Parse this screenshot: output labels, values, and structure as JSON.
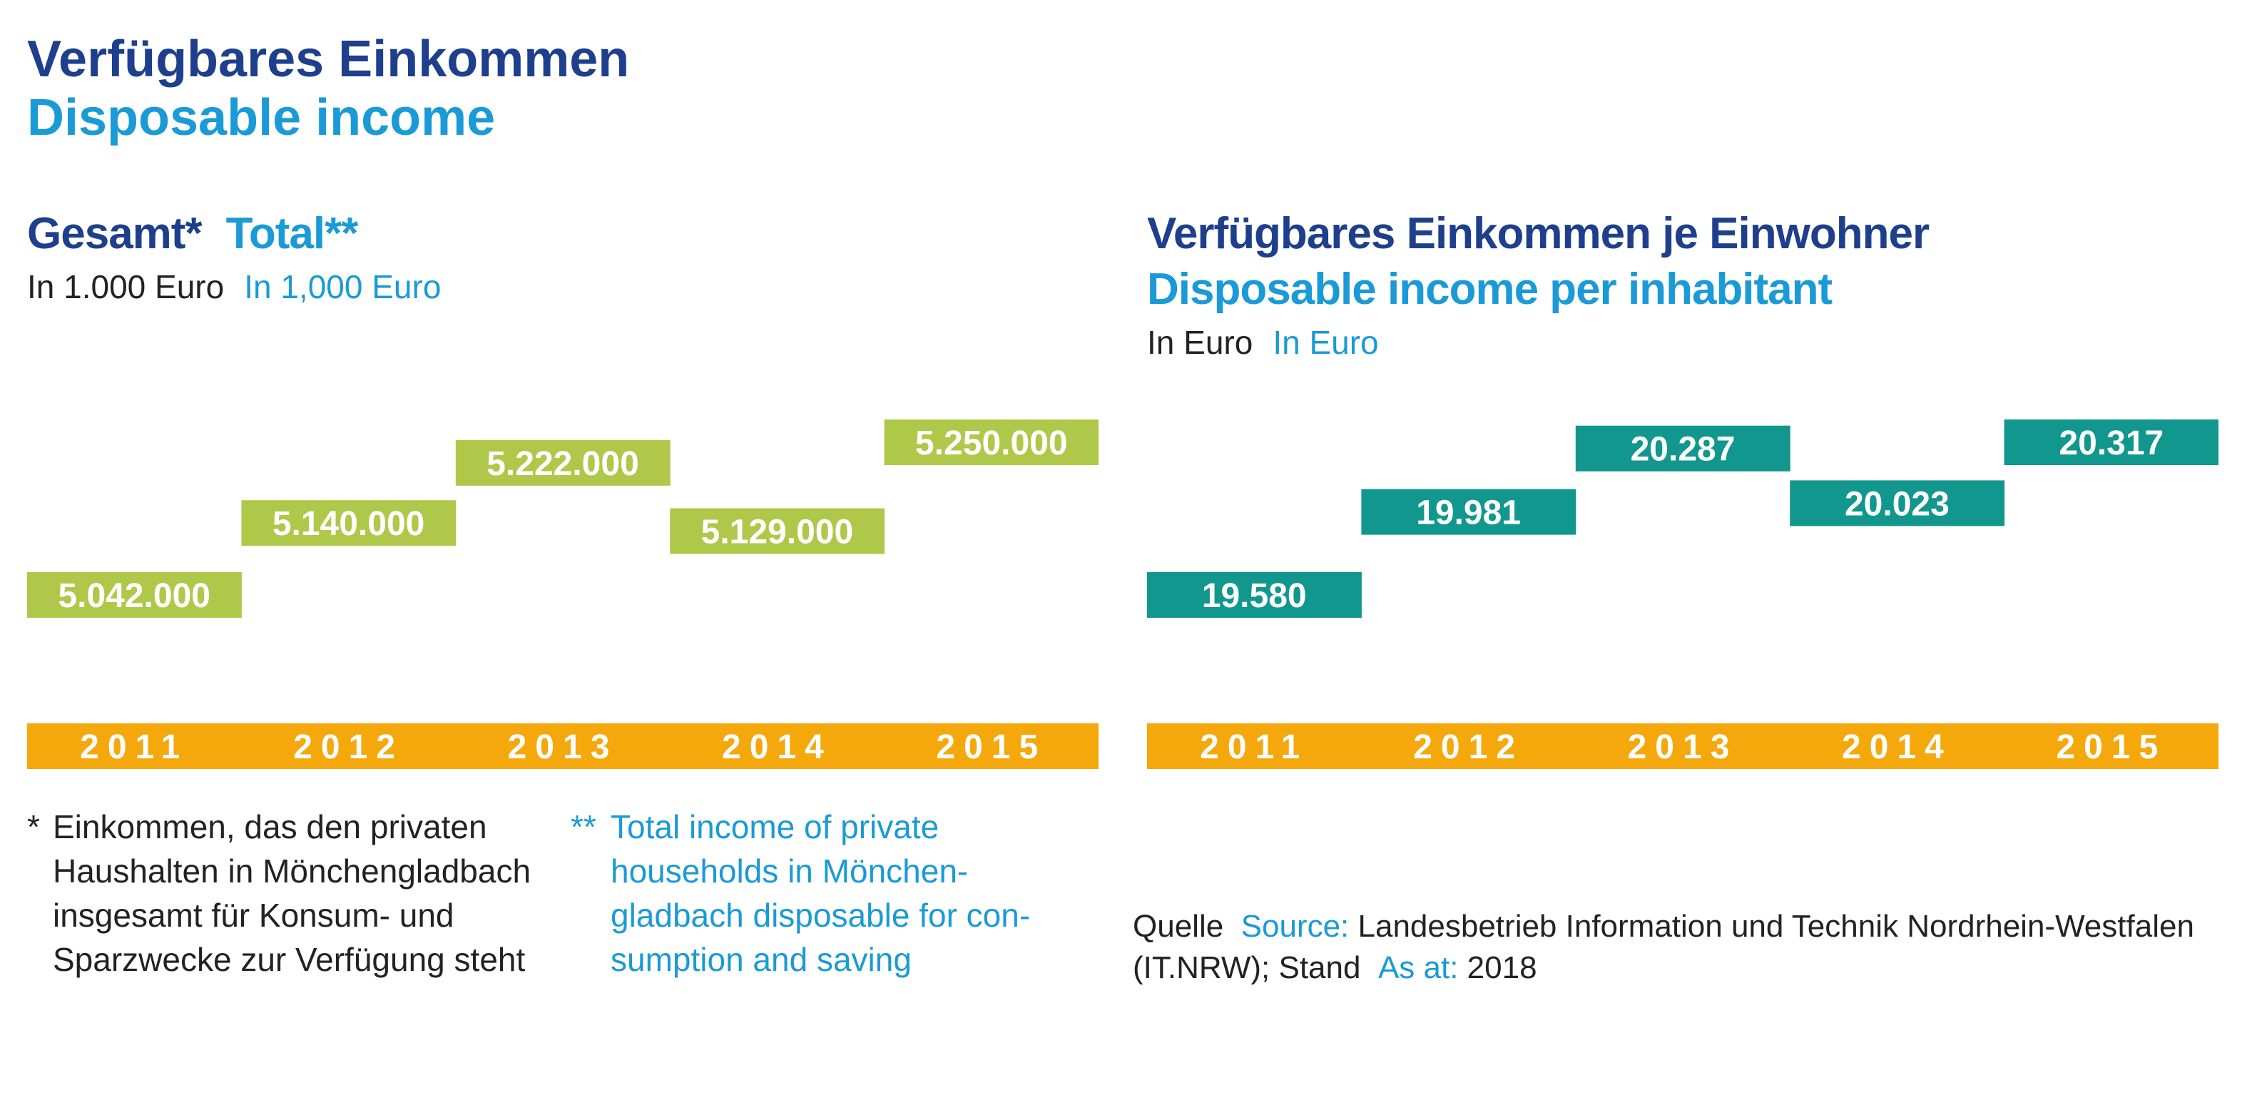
{
  "header": {
    "title_de": "Verfügbares Einkommen",
    "title_en": "Disposable income"
  },
  "colors": {
    "dark_blue": "#1d3f8c",
    "light_blue": "#1a9ad6",
    "green": "#afc84a",
    "teal": "#11978e",
    "orange": "#f5a80c"
  },
  "left_panel": {
    "title_de": "Gesamt*",
    "title_en": "Total**",
    "unit_de": "In 1.000 Euro",
    "unit_en": "In 1,000 Euro"
  },
  "right_panel": {
    "title_de": "Verfügbares Einkommen je Einwohner",
    "title_en": "Disposable income per inhabitant",
    "unit_de": "In Euro",
    "unit_en": "In Euro"
  },
  "chart_data": [
    {
      "type": "bar",
      "title": "Gesamt* Total**",
      "ylabel": "In 1.000 Euro",
      "categories": [
        "2011",
        "2012",
        "2013",
        "2014",
        "2015"
      ],
      "values": [
        5042000,
        5140000,
        5222000,
        5129000,
        5250000
      ],
      "labels": [
        "5.042.000",
        "5.140.000",
        "5.222.000",
        "5.129.000",
        "5.250.000"
      ],
      "color": "#afc84a",
      "grid": false
    },
    {
      "type": "bar",
      "title": "Verfügbares Einkommen je Einwohner",
      "ylabel": "In Euro",
      "categories": [
        "2011",
        "2012",
        "2013",
        "2014",
        "2015"
      ],
      "values": [
        19580,
        19981,
        20287,
        20023,
        20317
      ],
      "labels": [
        "19.580",
        "19.981",
        "20.287",
        "20.023",
        "20.317"
      ],
      "color": "#11978e",
      "grid": false
    }
  ],
  "footnotes": {
    "de_mark": "*",
    "de_lines": [
      "Einkommen, das den privaten",
      "Haushalten in Mönchengladbach",
      "insgesamt für Konsum- und",
      "Sparzwecke zur Verfügung steht"
    ],
    "en_mark": "**",
    "en_lines": [
      "Total income of private",
      "households in Mönchen-",
      "gladbach disposable for con-",
      "sumption and saving"
    ]
  },
  "source": {
    "label_de": "Quelle",
    "label_en": "Source:",
    "text_line1": "Landesbetrieb Information und Technik Nordrhein-Westfalen",
    "text_line2_start": "(IT.NRW); Stand",
    "asat_en": "As at:",
    "year": "2018"
  }
}
